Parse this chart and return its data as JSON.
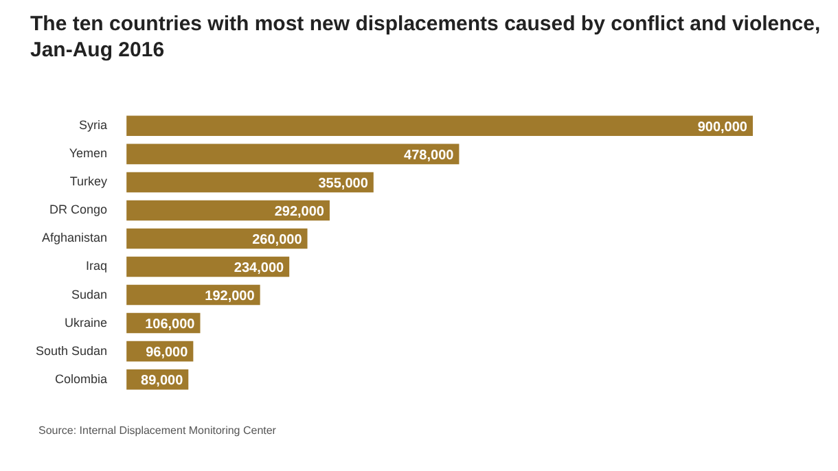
{
  "chart_data": {
    "type": "bar",
    "orientation": "horizontal",
    "title": "The ten countries with most new displacements caused by conflict and violence, Jan-Aug 2016",
    "categories": [
      "Syria",
      "Yemen",
      "Turkey",
      "DR Congo",
      "Afghanistan",
      "Iraq",
      "Sudan",
      "Ukraine",
      "South Sudan",
      "Colombia"
    ],
    "values": [
      900000,
      478000,
      355000,
      292000,
      260000,
      234000,
      192000,
      106000,
      96000,
      89000
    ],
    "value_labels": [
      "900,000",
      "478,000",
      "355,000",
      "292,000",
      "260,000",
      "234,000",
      "192,000",
      "106,000",
      "96,000",
      "89,000"
    ],
    "color": "#a07a2c",
    "annotations": [
      "Source: Internal Displacement Monitoring Center"
    ]
  }
}
